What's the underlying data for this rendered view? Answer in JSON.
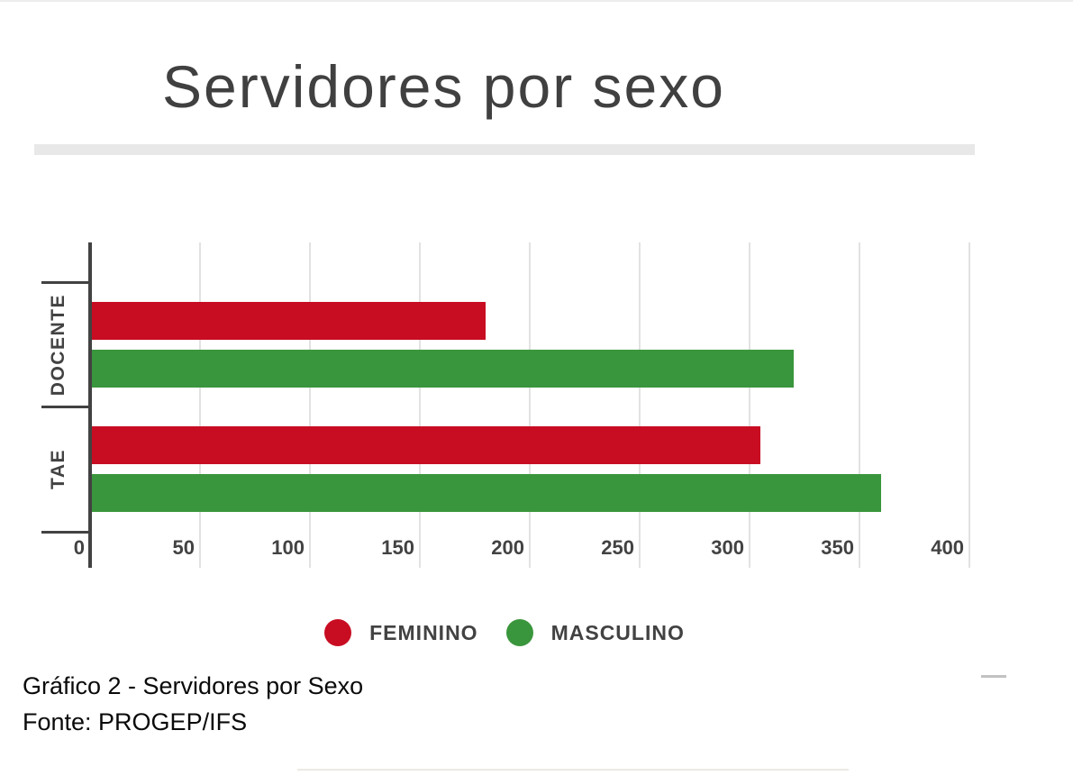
{
  "caption": {
    "line1": "Gráfico 2 - Servidores por Sexo",
    "line2": "Fonte: PROGEP/IFS"
  },
  "colors": {
    "feminino_red": "#C80D22",
    "masculino_green": "#3A963C",
    "axis_text": "#424242",
    "gridline": "#E2E2E2",
    "title_text": "#404040",
    "divider": "#E8E8E8"
  },
  "chart_data": {
    "type": "bar",
    "orientation": "horizontal",
    "title": "Servidores por sexo",
    "categories": [
      "DOCENTE",
      "TAE"
    ],
    "series": [
      {
        "name": "FEMININO",
        "color": "#C80D22",
        "values": [
          180,
          305
        ]
      },
      {
        "name": "MASCULINO",
        "color": "#3A963C",
        "values": [
          320,
          360
        ]
      }
    ],
    "xlim": [
      0,
      400
    ],
    "xticks": [
      0,
      50,
      100,
      150,
      200,
      250,
      300,
      350,
      400
    ],
    "grid": true,
    "legend_position": "bottom"
  }
}
